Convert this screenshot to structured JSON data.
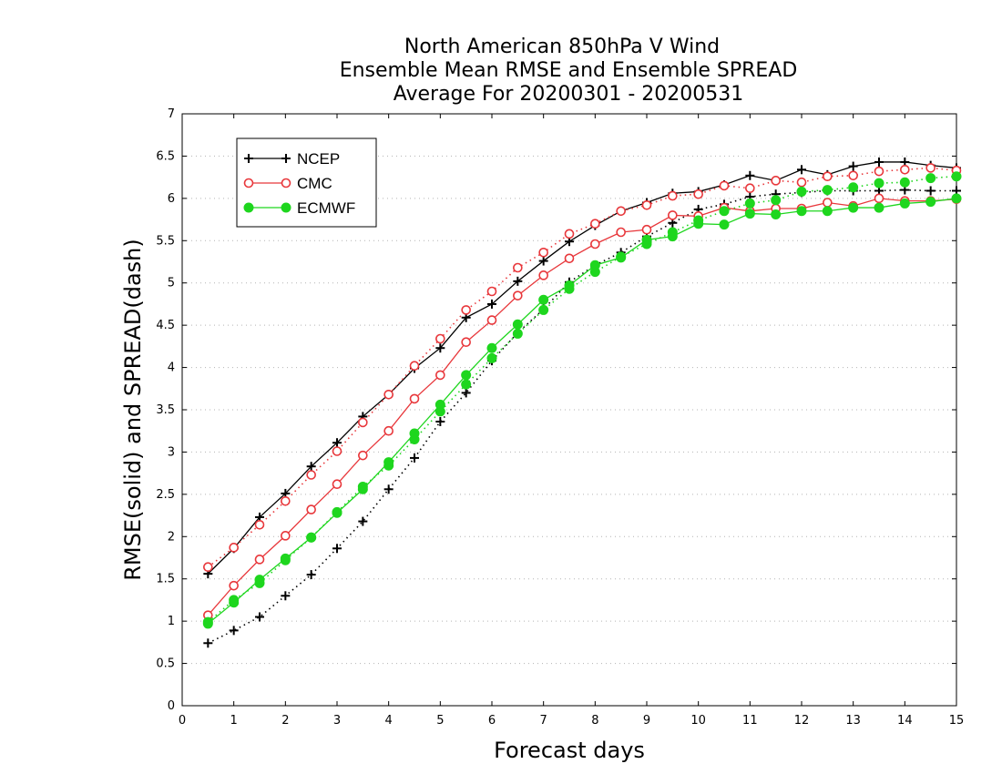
{
  "chart_data": {
    "type": "line",
    "title": [
      "North American 850hPa V Wind",
      "Ensemble Mean RMSE and Ensemble SPREAD",
      "Average For 20200301 - 20200531"
    ],
    "xlabel": "Forecast days",
    "ylabel": "RMSE(solid)  and  SPREAD(dash)",
    "xlim": [
      0,
      15
    ],
    "ylim": [
      0,
      7
    ],
    "xticks": [
      0,
      1,
      2,
      3,
      4,
      5,
      6,
      7,
      8,
      9,
      10,
      11,
      12,
      13,
      14,
      15
    ],
    "yticks": [
      0,
      0.5,
      1,
      1.5,
      2,
      2.5,
      3,
      3.5,
      4,
      4.5,
      5,
      5.5,
      6,
      6.5,
      7
    ],
    "grid": true,
    "legend_position": "top-left",
    "x": [
      0.5,
      1,
      1.5,
      2,
      2.5,
      3,
      3.5,
      4,
      4.5,
      5,
      5.5,
      6,
      6.5,
      7,
      7.5,
      8,
      8.5,
      9,
      9.5,
      10,
      10.5,
      11,
      11.5,
      12,
      12.5,
      13,
      13.5,
      14,
      14.5,
      15
    ],
    "series": [
      {
        "name": "NCEP",
        "color": "#000000",
        "marker": "plus",
        "rmse": [
          1.56,
          1.86,
          2.23,
          2.51,
          2.83,
          3.11,
          3.42,
          3.68,
          3.99,
          4.23,
          4.59,
          4.75,
          5.02,
          5.26,
          5.49,
          5.68,
          5.85,
          5.95,
          6.06,
          6.08,
          6.16,
          6.27,
          6.21,
          6.34,
          6.28,
          6.38,
          6.43,
          6.43,
          6.39,
          6.36
        ],
        "spread": [
          0.74,
          0.89,
          1.05,
          1.3,
          1.55,
          1.86,
          2.18,
          2.56,
          2.93,
          3.36,
          3.7,
          4.08,
          4.41,
          4.69,
          5.01,
          5.21,
          5.36,
          5.55,
          5.71,
          5.87,
          5.93,
          6.02,
          6.05,
          6.07,
          6.09,
          6.09,
          6.09,
          6.1,
          6.09,
          6.09
        ]
      },
      {
        "name": "CMC",
        "color": "#e8373b",
        "marker": "circle-open",
        "rmse": [
          1.07,
          1.42,
          1.73,
          2.01,
          2.32,
          2.62,
          2.96,
          3.25,
          3.63,
          3.91,
          4.3,
          4.56,
          4.85,
          5.09,
          5.29,
          5.46,
          5.6,
          5.63,
          5.8,
          5.79,
          5.89,
          5.85,
          5.88,
          5.88,
          5.95,
          5.91,
          6.0,
          5.97,
          5.97,
          5.99
        ],
        "spread": [
          1.64,
          1.87,
          2.14,
          2.42,
          2.73,
          3.01,
          3.35,
          3.68,
          4.02,
          4.34,
          4.68,
          4.9,
          5.18,
          5.36,
          5.58,
          5.7,
          5.85,
          5.92,
          6.03,
          6.05,
          6.15,
          6.12,
          6.21,
          6.19,
          6.26,
          6.27,
          6.32,
          6.34,
          6.36,
          6.33
        ]
      },
      {
        "name": "ECMWF",
        "color": "#1ed61e",
        "marker": "circle-filled",
        "rmse": [
          0.97,
          1.22,
          1.49,
          1.74,
          1.99,
          2.28,
          2.56,
          2.88,
          3.22,
          3.56,
          3.91,
          4.23,
          4.51,
          4.8,
          4.97,
          5.21,
          5.3,
          5.51,
          5.55,
          5.7,
          5.69,
          5.82,
          5.81,
          5.85,
          5.85,
          5.89,
          5.89,
          5.94,
          5.96,
          6.0
        ],
        "spread": [
          0.99,
          1.25,
          1.45,
          1.72,
          1.99,
          2.29,
          2.59,
          2.84,
          3.15,
          3.48,
          3.8,
          4.11,
          4.4,
          4.68,
          4.93,
          5.13,
          5.31,
          5.46,
          5.6,
          5.74,
          5.85,
          5.94,
          5.98,
          6.08,
          6.1,
          6.13,
          6.18,
          6.19,
          6.24,
          6.26
        ]
      }
    ]
  }
}
